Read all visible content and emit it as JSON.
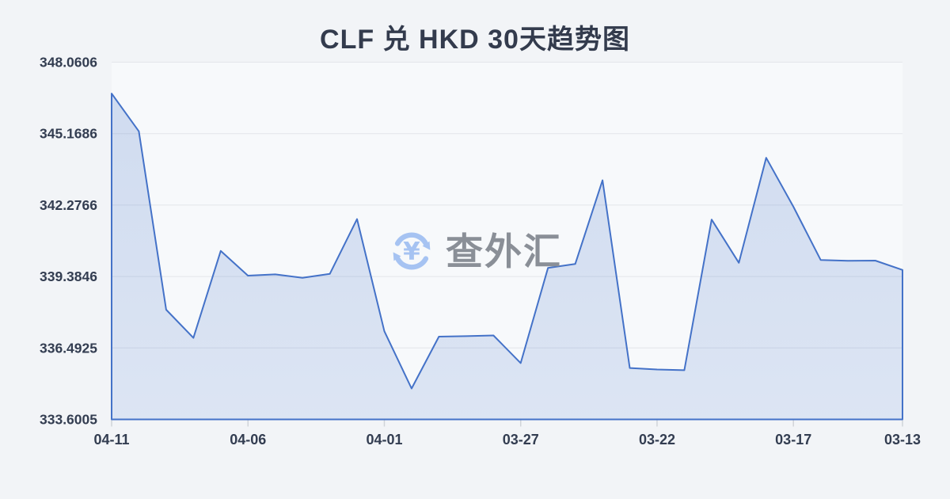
{
  "title": "CLF 兑 HKD 30天趋势图",
  "watermark": {
    "icon": "currency-exchange-icon",
    "text": "查外汇"
  },
  "colors": {
    "background": "#f2f4f7",
    "plot_background": "#f7f9fb",
    "line": "#4472c8",
    "fill_top": "rgba(68,114,200,0.22)",
    "fill_bottom": "rgba(68,114,200,0.15)",
    "grid": "#e3e6ea",
    "tick": "#d0d4d9",
    "axis_text": "#333d51",
    "watermark_text": "#8a8f97",
    "watermark_icon": "#a6c3f2"
  },
  "chart_data": {
    "type": "area",
    "title": "CLF 兑 HKD 30天趋势图",
    "x": [
      "04-11",
      "04-10",
      "04-09",
      "04-08",
      "04-07",
      "04-06",
      "04-05",
      "04-04",
      "04-03",
      "04-02",
      "04-01",
      "03-31",
      "03-30",
      "03-29",
      "03-28",
      "03-27",
      "03-26",
      "03-25",
      "03-24",
      "03-23",
      "03-22",
      "03-21",
      "03-20",
      "03-19",
      "03-18",
      "03-17",
      "03-16",
      "03-15",
      "03-14",
      "03-13"
    ],
    "values": [
      346.79,
      345.26,
      338.04,
      336.9,
      340.42,
      339.42,
      339.47,
      339.33,
      339.49,
      341.71,
      337.17,
      334.85,
      336.95,
      336.97,
      337.0,
      335.88,
      339.73,
      339.89,
      343.28,
      335.68,
      335.62,
      335.59,
      341.69,
      339.94,
      344.19,
      342.21,
      340.05,
      340.02,
      340.03,
      339.65
    ],
    "y_tick_labels": [
      "348.0606",
      "345.1686",
      "342.2766",
      "339.3846",
      "336.4925",
      "333.6005"
    ],
    "y_ticks": [
      348.0606,
      345.1686,
      342.2766,
      339.3846,
      336.4925,
      333.6005
    ],
    "x_tick_indices": [
      0,
      5,
      10,
      15,
      20,
      25,
      29
    ],
    "x_tick_labels": [
      "04-11",
      "04-06",
      "04-01",
      "03-27",
      "03-22",
      "03-17",
      "03-13"
    ],
    "ylim": [
      333.6005,
      348.0606
    ],
    "grid": true,
    "legend": false
  }
}
